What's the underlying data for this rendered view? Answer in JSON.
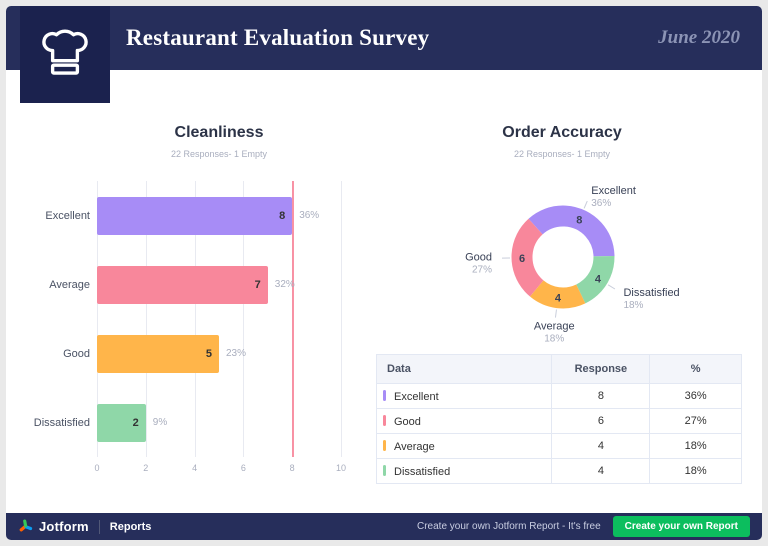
{
  "header": {
    "title": "Restaurant Evaluation Survey",
    "date": "June 2020"
  },
  "chart_data": [
    {
      "type": "bar",
      "orientation": "horizontal",
      "title": "Cleanliness",
      "subtitle": "22 Responses- 1 Empty",
      "categories": [
        "Excellent",
        "Average",
        "Good",
        "Dissatisfied"
      ],
      "values": [
        8,
        7,
        5,
        2
      ],
      "percent_labels": [
        "36%",
        "32%",
        "23%",
        "9%"
      ],
      "colors": [
        "#A78CF6",
        "#F8879B",
        "#FFB54A",
        "#8FD7A8"
      ],
      "xlim": [
        0,
        10
      ],
      "xticks": [
        "0",
        "2",
        "4",
        "6",
        "8",
        "10"
      ],
      "grid": true,
      "marker_x": 8,
      "marker_color": "#F8879B"
    },
    {
      "type": "pie",
      "donut": true,
      "title": "Order Accuracy",
      "subtitle": "22 Responses- 1 Empty",
      "categories": [
        "Excellent",
        "Dissatisfied",
        "Average",
        "Good"
      ],
      "values": [
        8,
        4,
        4,
        6
      ],
      "percent_labels": [
        "36%",
        "18%",
        "18%",
        "27%"
      ],
      "colors": [
        "#A78CF6",
        "#8FD7A8",
        "#FFB54A",
        "#F8879B"
      ],
      "legend_position": "outside-labels"
    }
  ],
  "table": {
    "headers": [
      "Data",
      "Response",
      "%"
    ],
    "rows": [
      {
        "label": "Excellent",
        "response": "8",
        "percent": "36%",
        "color": "#A78CF6"
      },
      {
        "label": "Good",
        "response": "6",
        "percent": "27%",
        "color": "#F8879B"
      },
      {
        "label": "Average",
        "response": "4",
        "percent": "18%",
        "color": "#FFB54A"
      },
      {
        "label": "Dissatisfied",
        "response": "4",
        "percent": "18%",
        "color": "#8FD7A8"
      }
    ]
  },
  "footer": {
    "brand": "Jotform",
    "section": "Reports",
    "cta_text": "Create your own Jotform Report - It's free",
    "cta_button": "Create your own Report",
    "button_color": "#0CBE5E"
  }
}
